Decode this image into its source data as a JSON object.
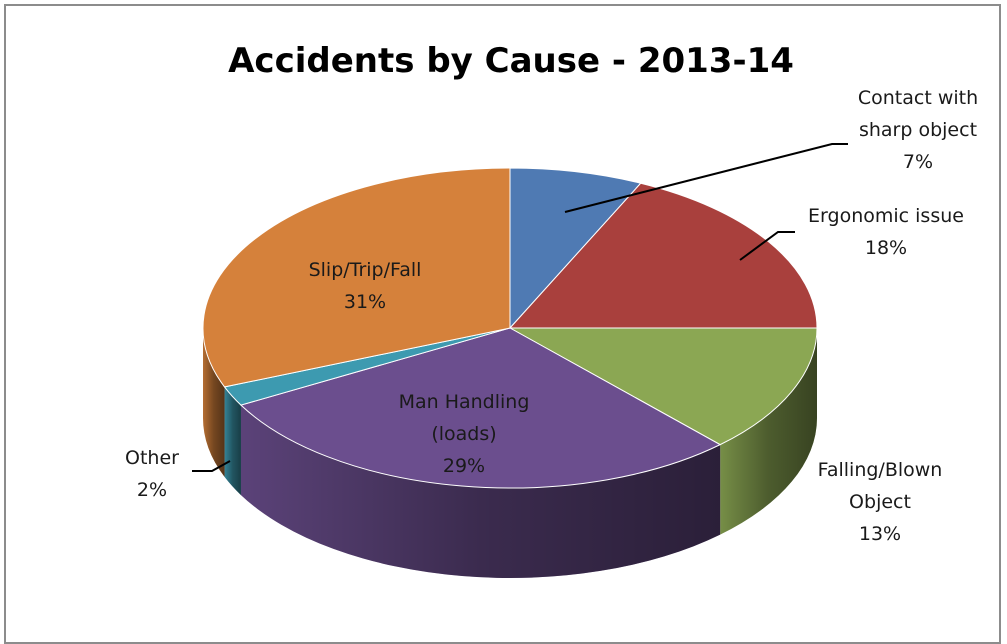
{
  "chart_data": {
    "type": "pie",
    "title": "Accidents by Cause - 2013-14",
    "slices": [
      {
        "name": "Contact with sharp object",
        "value": 7,
        "pct_label": "7%",
        "color": "#4F7AB3",
        "label_lines": [
          "Contact with",
          "sharp object",
          "7%"
        ]
      },
      {
        "name": "Ergonomic issue",
        "value": 18,
        "pct_label": "18%",
        "color": "#A9403D",
        "label_lines": [
          "Ergonomic issue",
          "18%"
        ]
      },
      {
        "name": "Falling/Blown Object",
        "value": 13,
        "pct_label": "13%",
        "color": "#8BA753",
        "label_lines": [
          "Falling/Blown",
          "Object",
          "13%"
        ]
      },
      {
        "name": "Man Handling (loads)",
        "value": 29,
        "pct_label": "29%",
        "color": "#6B4E8E",
        "label_lines": [
          "Man Handling",
          "(loads)",
          "29%"
        ]
      },
      {
        "name": "Other",
        "value": 2,
        "pct_label": "2%",
        "color": "#3D9AB0",
        "label_lines": [
          "Other",
          "2%"
        ]
      },
      {
        "name": "Slip/Trip/Fall",
        "value": 31,
        "pct_label": "31%",
        "color": "#D5813B",
        "label_lines": [
          "Slip/Trip/Fall",
          "31%"
        ]
      }
    ]
  }
}
